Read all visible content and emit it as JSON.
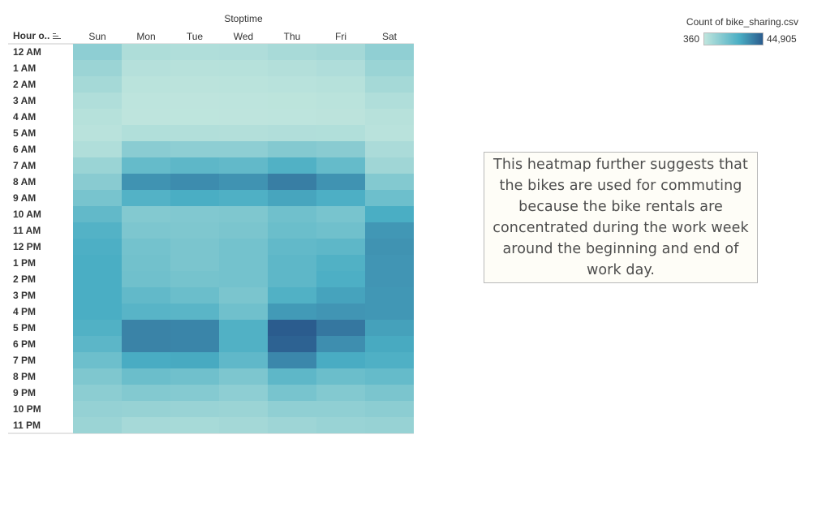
{
  "chart_data": {
    "type": "heatmap",
    "title": "",
    "column_title": "Stoptime",
    "row_header": "Hour o..",
    "columns": [
      "Sun",
      "Mon",
      "Tue",
      "Wed",
      "Thu",
      "Fri",
      "Sat"
    ],
    "rows": [
      "12 AM",
      "1 AM",
      "2 AM",
      "3 AM",
      "4 AM",
      "5 AM",
      "6 AM",
      "7 AM",
      "8 AM",
      "9 AM",
      "10 AM",
      "11 AM",
      "12 PM",
      "1 PM",
      "2 PM",
      "3 PM",
      "4 PM",
      "5 PM",
      "6 PM",
      "7 PM",
      "8 PM",
      "9 PM",
      "10 PM",
      "11 PM"
    ],
    "values": [
      [
        11500,
        4200,
        3800,
        4100,
        5500,
        6500,
        11000
      ],
      [
        8500,
        2600,
        2300,
        2400,
        3200,
        4100,
        8800
      ],
      [
        6300,
        1500,
        1300,
        1400,
        1900,
        2500,
        6300
      ],
      [
        3800,
        800,
        700,
        750,
        1000,
        1400,
        3900
      ],
      [
        2400,
        700,
        600,
        650,
        800,
        1100,
        2300
      ],
      [
        1700,
        3500,
        3300,
        3100,
        3600,
        3500,
        1800
      ],
      [
        3800,
        12500,
        11500,
        11500,
        13800,
        12800,
        5000
      ],
      [
        8700,
        21000,
        22500,
        21500,
        25500,
        21000,
        7500
      ],
      [
        12800,
        33000,
        34500,
        33000,
        37500,
        33000,
        14000
      ],
      [
        16500,
        25000,
        27000,
        26000,
        29000,
        26500,
        19000
      ],
      [
        21500,
        14000,
        14500,
        15000,
        18500,
        16500,
        27000
      ],
      [
        25000,
        15500,
        15000,
        16000,
        19500,
        18500,
        32000
      ],
      [
        26500,
        17500,
        16000,
        17500,
        21500,
        22500,
        33000
      ],
      [
        27000,
        18000,
        16000,
        17500,
        22500,
        25500,
        32500
      ],
      [
        27000,
        18500,
        17000,
        17500,
        22500,
        26500,
        32500
      ],
      [
        27000,
        21500,
        19500,
        16000,
        25500,
        29500,
        32000
      ],
      [
        27000,
        24000,
        23500,
        18500,
        31500,
        32500,
        32000
      ],
      [
        25500,
        36500,
        36000,
        25500,
        44905,
        39000,
        30000
      ],
      [
        23000,
        36500,
        36000,
        25500,
        43500,
        34000,
        28000
      ],
      [
        19000,
        27500,
        28000,
        22000,
        35500,
        27500,
        26000
      ],
      [
        15000,
        19500,
        18500,
        15500,
        22500,
        19500,
        21000
      ],
      [
        12000,
        14000,
        13500,
        11500,
        16500,
        14000,
        16000
      ],
      [
        10000,
        9500,
        9000,
        8500,
        11000,
        11000,
        12000
      ],
      [
        8500,
        6000,
        5800,
        6500,
        8000,
        9000,
        9500
      ]
    ],
    "legend": {
      "title": "Count of bike_sharing.csv",
      "min": 360,
      "max": 44905,
      "min_label": "360",
      "max_label": "44,905",
      "placement": "top-right",
      "color_low": "#bfe5dd",
      "color_mid": "#4aaec4",
      "color_high": "#2b5c8e"
    },
    "annotation": "This heatmap further suggests that the bikes are used for commuting because the bike rentals are concentrated during the work week around the beginning and end of work day."
  }
}
